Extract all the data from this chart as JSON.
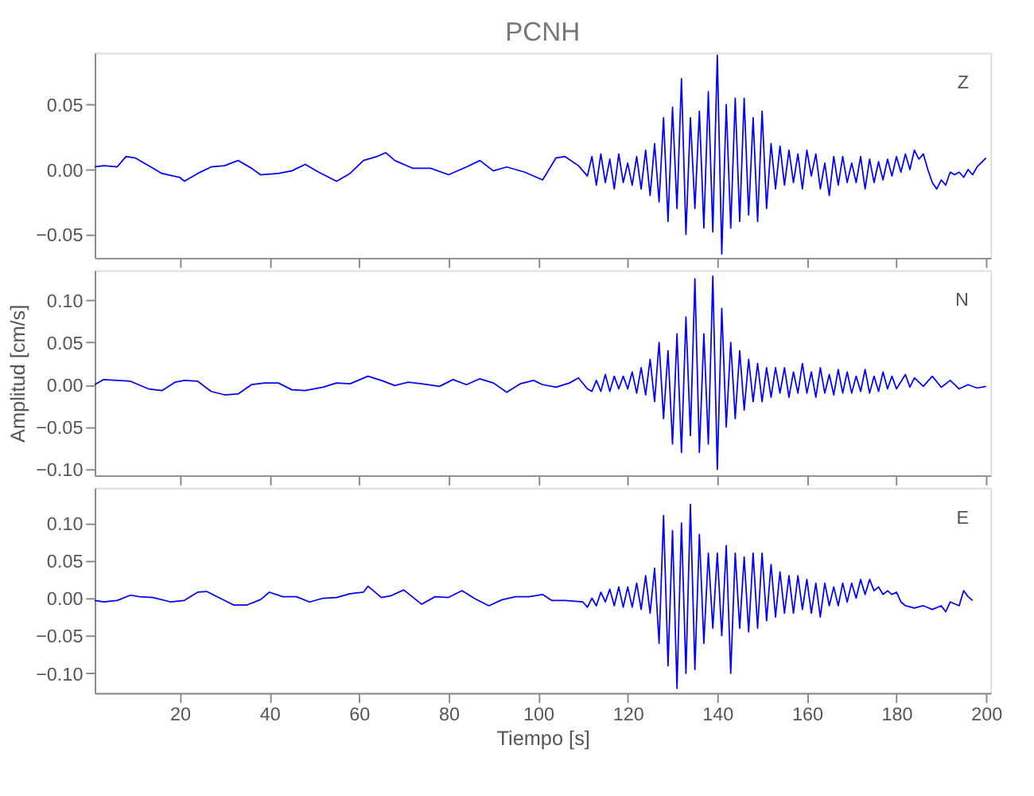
{
  "chart_data": [
    {
      "type": "line",
      "title": "PCNH",
      "annotations": [
        "Z"
      ],
      "xlim": [
        1,
        201
      ],
      "xticks": [
        20,
        40,
        60,
        80,
        100,
        120,
        140,
        160,
        180,
        200
      ],
      "ylim": [
        -0.068,
        0.09
      ],
      "yticks": [
        {
          "value": -0.05,
          "label": "−0.05"
        },
        {
          "value": 0.0,
          "label": "0.00"
        },
        {
          "value": 0.05,
          "label": "0.05"
        }
      ],
      "tick_labels": "y",
      "series": [
        {
          "color": "#0000ff",
          "x": [
            1,
            3,
            6,
            8,
            10,
            13,
            16,
            20,
            21,
            24,
            27,
            30,
            33,
            36,
            38,
            42,
            45,
            48,
            51,
            55,
            58,
            61,
            64,
            66,
            68,
            72,
            76,
            80,
            84,
            87,
            90,
            93,
            97,
            101,
            104,
            106,
            109,
            111,
            112,
            113,
            114,
            115,
            116,
            117,
            118,
            119,
            120,
            121,
            122,
            123,
            124,
            125,
            126,
            127,
            128,
            129,
            130,
            131,
            132,
            133,
            134,
            135,
            136,
            137,
            138,
            139,
            140,
            141,
            142,
            143,
            144,
            145,
            146,
            147,
            148,
            149,
            150,
            151,
            152,
            153,
            154,
            155,
            156,
            157,
            158,
            159,
            160,
            161,
            162,
            163,
            164,
            165,
            166,
            167,
            168,
            169,
            170,
            171,
            172,
            173,
            174,
            175,
            176,
            177,
            178,
            179,
            180,
            181,
            182,
            183,
            184,
            185,
            186,
            187,
            188,
            189,
            190,
            191,
            192,
            193,
            194,
            195,
            196,
            197,
            198,
            200
          ],
          "values": [
            0.002,
            0.003,
            0.002,
            0.01,
            0.009,
            0.003,
            -0.003,
            -0.006,
            -0.009,
            -0.003,
            0.002,
            0.003,
            0.007,
            0.001,
            -0.004,
            -0.003,
            -0.001,
            0.004,
            -0.002,
            -0.009,
            -0.003,
            0.007,
            0.01,
            0.013,
            0.007,
            0.001,
            0.001,
            -0.004,
            0.002,
            0.007,
            -0.001,
            0.002,
            -0.002,
            -0.008,
            0.009,
            0.01,
            0.003,
            -0.005,
            0.01,
            -0.012,
            0.012,
            -0.01,
            0.008,
            -0.015,
            0.012,
            -0.01,
            0.005,
            -0.012,
            0.01,
            -0.015,
            0.015,
            -0.02,
            0.02,
            -0.025,
            0.04,
            -0.04,
            0.048,
            -0.03,
            0.07,
            -0.05,
            0.04,
            -0.03,
            0.045,
            -0.045,
            0.06,
            -0.048,
            0.088,
            -0.065,
            0.05,
            -0.045,
            0.055,
            -0.04,
            0.055,
            -0.035,
            0.04,
            -0.04,
            0.045,
            -0.03,
            0.02,
            -0.015,
            0.018,
            -0.012,
            0.015,
            -0.01,
            0.012,
            -0.015,
            0.015,
            -0.005,
            0.012,
            -0.015,
            0.005,
            -0.02,
            0.01,
            -0.012,
            0.01,
            -0.01,
            0.005,
            -0.01,
            0.01,
            -0.015,
            0.008,
            -0.01,
            0.006,
            -0.008,
            0.008,
            -0.005,
            0.01,
            -0.002,
            0.012,
            0.0,
            0.015,
            0.008,
            0.012,
            0.0,
            -0.01,
            -0.015,
            -0.008,
            -0.012,
            -0.002,
            -0.004,
            -0.002,
            -0.006,
            0.0,
            -0.004,
            0.002,
            0.009
          ]
        }
      ]
    },
    {
      "type": "line",
      "ylabel": "Amplitud  [cm/s]",
      "annotations": [
        "N"
      ],
      "xlim": [
        1,
        201
      ],
      "xticks": [
        20,
        40,
        60,
        80,
        100,
        120,
        140,
        160,
        180,
        200
      ],
      "ylim": [
        -0.107,
        0.135
      ],
      "yticks": [
        {
          "value": -0.1,
          "label": "−0.10"
        },
        {
          "value": -0.05,
          "label": "−0.05"
        },
        {
          "value": 0.0,
          "label": "0.00"
        },
        {
          "value": 0.05,
          "label": "0.05"
        },
        {
          "value": 0.1,
          "label": "0.10"
        }
      ],
      "tick_labels": "y",
      "series": [
        {
          "color": "#0000ff",
          "x": [
            1,
            3,
            6,
            9,
            13,
            16,
            19,
            21,
            24,
            27,
            30,
            33,
            36,
            39,
            42,
            45,
            48,
            52,
            55,
            58,
            62,
            65,
            68,
            71,
            74,
            78,
            81,
            84,
            87,
            90,
            93,
            96,
            99,
            101,
            104,
            107,
            109,
            111,
            112,
            113,
            114,
            115,
            116,
            117,
            118,
            119,
            120,
            121,
            122,
            123,
            124,
            125,
            126,
            127,
            128,
            129,
            130,
            131,
            132,
            133,
            134,
            135,
            136,
            137,
            138,
            139,
            140,
            141,
            142,
            143,
            144,
            145,
            146,
            147,
            148,
            149,
            150,
            151,
            152,
            153,
            154,
            155,
            156,
            157,
            158,
            159,
            160,
            161,
            162,
            163,
            164,
            165,
            166,
            167,
            168,
            169,
            170,
            171,
            172,
            173,
            174,
            175,
            176,
            177,
            178,
            179,
            180,
            182,
            183,
            184,
            186,
            188,
            190,
            192,
            194,
            196,
            198,
            200
          ],
          "values": [
            0.0,
            0.006,
            0.005,
            0.004,
            -0.005,
            -0.007,
            0.003,
            0.005,
            0.004,
            -0.008,
            -0.012,
            -0.011,
            0.0,
            0.002,
            0.002,
            -0.006,
            -0.007,
            -0.003,
            0.002,
            0.001,
            0.01,
            0.005,
            -0.001,
            0.003,
            0.001,
            -0.002,
            0.006,
            0.0,
            0.007,
            0.002,
            -0.009,
            0.001,
            0.005,
            0.0,
            -0.003,
            0.002,
            0.008,
            -0.005,
            -0.008,
            0.005,
            -0.008,
            0.012,
            -0.008,
            0.01,
            -0.005,
            0.01,
            -0.005,
            0.015,
            -0.01,
            0.02,
            -0.012,
            0.03,
            -0.02,
            0.05,
            -0.04,
            0.04,
            -0.07,
            0.06,
            -0.08,
            0.08,
            -0.06,
            0.125,
            -0.08,
            0.06,
            -0.07,
            0.128,
            -0.1,
            0.09,
            -0.05,
            0.05,
            -0.04,
            0.04,
            -0.03,
            0.03,
            -0.02,
            0.025,
            -0.02,
            0.02,
            -0.015,
            0.02,
            -0.01,
            0.02,
            -0.015,
            0.015,
            -0.01,
            0.025,
            -0.01,
            0.015,
            -0.015,
            0.02,
            -0.01,
            0.012,
            -0.012,
            0.018,
            -0.01,
            0.015,
            -0.01,
            0.01,
            -0.008,
            0.018,
            -0.01,
            0.01,
            -0.008,
            0.015,
            -0.005,
            0.01,
            -0.005,
            0.012,
            -0.003,
            0.008,
            -0.002,
            0.01,
            -0.003,
            0.005,
            -0.005,
            0.0,
            -0.004,
            -0.002
          ]
        }
      ]
    },
    {
      "type": "line",
      "xlabel": "Tiempo  [s]",
      "annotations": [
        "E"
      ],
      "xlim": [
        1,
        201
      ],
      "xticks": [
        20,
        40,
        60,
        80,
        100,
        120,
        140,
        160,
        180,
        200
      ],
      "ylim": [
        -0.126,
        0.147
      ],
      "yticks": [
        {
          "value": -0.1,
          "label": "−0.10"
        },
        {
          "value": -0.05,
          "label": "−0.05"
        },
        {
          "value": 0.0,
          "label": "0.00"
        },
        {
          "value": 0.05,
          "label": "0.05"
        },
        {
          "value": 0.1,
          "label": "0.10"
        }
      ],
      "series": [
        {
          "color": "#0000ff",
          "x": [
            1,
            3,
            6,
            9,
            11,
            14,
            18,
            21,
            24,
            26,
            29,
            32,
            35,
            38,
            40,
            43,
            46,
            49,
            52,
            55,
            58,
            61,
            62,
            65,
            67,
            70,
            74,
            77,
            80,
            83,
            86,
            89,
            92,
            95,
            98,
            101,
            103,
            106,
            110,
            111,
            112,
            113,
            114,
            115,
            116,
            117,
            118,
            119,
            120,
            121,
            122,
            123,
            124,
            125,
            126,
            127,
            128,
            129,
            130,
            131,
            132,
            133,
            134,
            135,
            136,
            137,
            138,
            139,
            140,
            141,
            142,
            143,
            144,
            145,
            146,
            147,
            148,
            149,
            150,
            151,
            152,
            153,
            154,
            155,
            156,
            157,
            158,
            159,
            160,
            161,
            162,
            163,
            164,
            165,
            166,
            167,
            168,
            169,
            170,
            171,
            172,
            173,
            174,
            175,
            176,
            177,
            178,
            179,
            180,
            181,
            182,
            184,
            186,
            188,
            190,
            191,
            192,
            194,
            195,
            196,
            197
          ],
          "values": [
            -0.003,
            -0.005,
            -0.003,
            0.004,
            0.002,
            0.001,
            -0.005,
            -0.003,
            0.008,
            0.009,
            0.0,
            -0.009,
            -0.009,
            -0.002,
            0.008,
            0.002,
            0.002,
            -0.005,
            0.0,
            0.001,
            0.006,
            0.008,
            0.016,
            0.001,
            0.003,
            0.011,
            -0.008,
            0.002,
            0.001,
            0.01,
            -0.001,
            -0.01,
            -0.002,
            0.002,
            0.002,
            0.005,
            -0.003,
            -0.003,
            -0.005,
            -0.012,
            0.0,
            -0.01,
            0.008,
            -0.005,
            0.012,
            -0.01,
            0.015,
            -0.012,
            0.015,
            -0.012,
            0.02,
            -0.015,
            0.03,
            -0.02,
            0.04,
            -0.06,
            0.11,
            -0.09,
            0.09,
            -0.12,
            0.1,
            -0.1,
            0.125,
            -0.095,
            0.085,
            -0.06,
            0.06,
            -0.04,
            0.06,
            -0.05,
            0.07,
            -0.1,
            0.06,
            -0.04,
            0.055,
            -0.045,
            0.06,
            -0.04,
            0.06,
            -0.03,
            0.045,
            -0.025,
            0.035,
            -0.02,
            0.03,
            -0.02,
            0.03,
            -0.015,
            0.025,
            -0.02,
            0.02,
            -0.025,
            0.02,
            -0.01,
            0.015,
            -0.01,
            0.02,
            -0.005,
            0.02,
            0.0,
            0.025,
            0.005,
            0.025,
            0.01,
            0.015,
            0.005,
            0.01,
            0.005,
            0.008,
            -0.005,
            -0.01,
            -0.013,
            -0.01,
            -0.015,
            -0.01,
            -0.018,
            -0.005,
            -0.01,
            0.01,
            0.002,
            -0.003
          ]
        }
      ]
    }
  ]
}
